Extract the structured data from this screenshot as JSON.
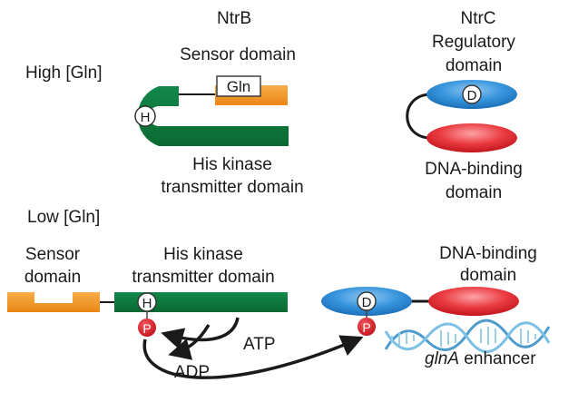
{
  "colors": {
    "sensor_orange": "#f29220",
    "kinase_green": "#0f7a3a",
    "regulatory_blue": "#2f8fd8",
    "dna_binding_red": "#e8333a",
    "phosphate_red": "#d5202f",
    "dna_blue": "#5aaed8"
  },
  "headers": {
    "ntrb": "NtrB",
    "ntrc": "NtrC"
  },
  "high": {
    "condition": "High [Gln]",
    "sensor_domain": "Sensor domain",
    "gln_box": "Gln",
    "his_marker": "H",
    "kinase_line1": "His kinase",
    "kinase_line2": "transmitter domain",
    "regulatory_line1": "Regulatory",
    "regulatory_line2": "domain",
    "asp_marker": "D",
    "dna_binding_line1": "DNA-binding",
    "dna_binding_line2": "domain"
  },
  "low": {
    "condition": "Low [Gln]",
    "sensor_line1": "Sensor",
    "sensor_line2": "domain",
    "kinase_line1": "His kinase",
    "kinase_line2": "transmitter domain",
    "his_marker": "H",
    "phospho_marker_his": "P",
    "atp": "ATP",
    "adp": "ADP",
    "dna_binding_line1": "DNA-binding",
    "dna_binding_line2": "domain",
    "asp_marker": "D",
    "phospho_marker_asp": "P",
    "enhancer_gene": "glnA",
    "enhancer_word": " enhancer"
  }
}
